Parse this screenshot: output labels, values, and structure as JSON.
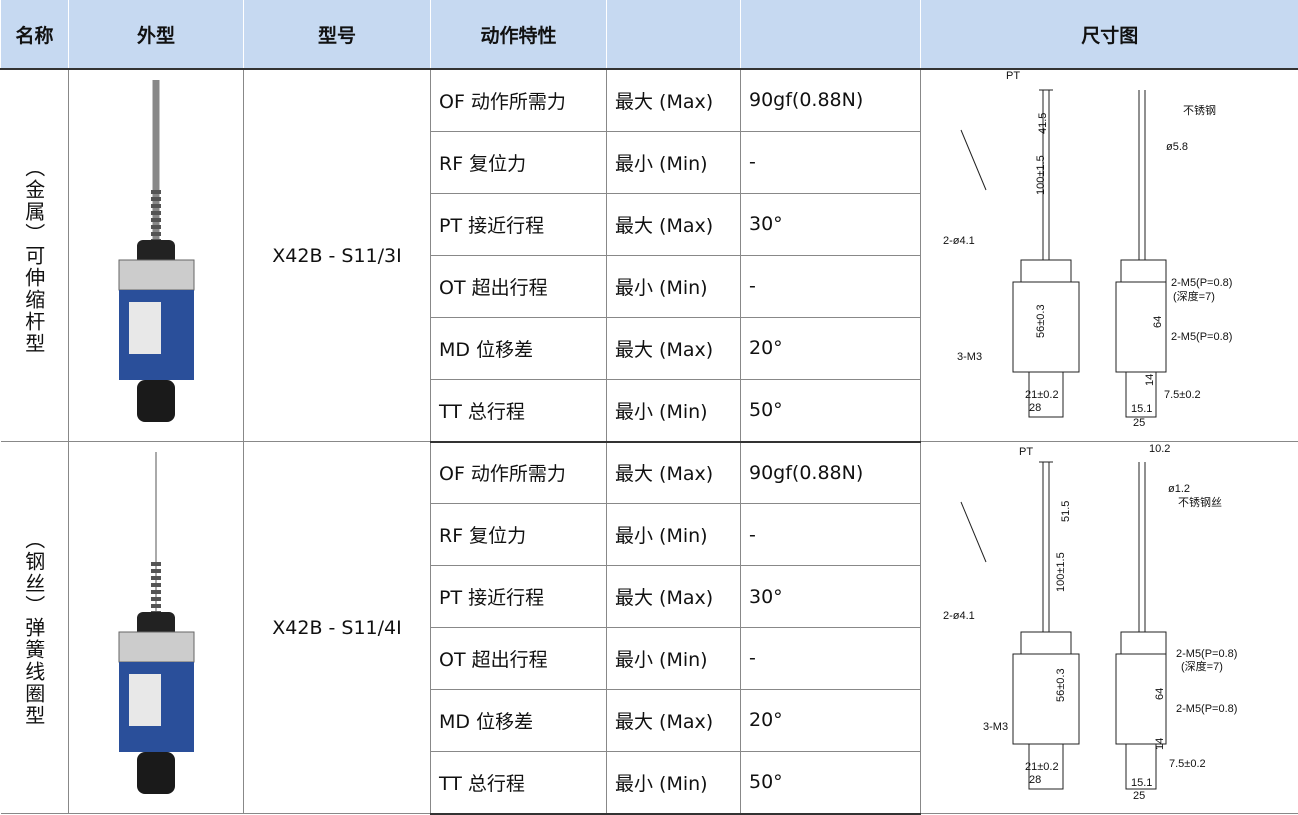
{
  "table": {
    "headers": [
      "名称",
      "外型",
      "型号",
      "动作特性",
      "尺寸图"
    ],
    "groups": [
      {
        "name": "（金属）可伸缩杆型",
        "model": "X42B - S11/3I",
        "rows": [
          [
            "OF 动作所需力",
            "最大 (Max)",
            "90gf(0.88N)"
          ],
          [
            "RF 复位力",
            "最小 (Min)",
            "-"
          ],
          [
            "PT 接近行程",
            "最大 (Max)",
            "30°"
          ],
          [
            "OT 超出行程",
            "最小 (Min)",
            "-"
          ],
          [
            "MD 位移差",
            "最大 (Max)",
            "20°"
          ],
          [
            "TT 总行程",
            "最小 (Min)",
            "50°"
          ]
        ],
        "drawing_labels": [
          "PT",
          "41.5",
          "100±1.5",
          "不锈钢",
          "ø5.8",
          "2-ø4.1",
          "2-M5(P=0.8)",
          "(深度=7)",
          "56±0.3",
          "64",
          "2-M5(P=0.8)",
          "3-M3",
          "14",
          "7.5±0.2",
          "21±0.2",
          "28",
          "15.1",
          "25"
        ]
      },
      {
        "name": "（钢丝）弹簧线圈型",
        "model": "X42B - S11/4I",
        "rows": [
          [
            "OF 动作所需力",
            "最大 (Max)",
            "90gf(0.88N)"
          ],
          [
            "RF 复位力",
            "最小 (Min)",
            "-"
          ],
          [
            "PT 接近行程",
            "最大 (Max)",
            "30°"
          ],
          [
            "OT 超出行程",
            "最小 (Min)",
            "-"
          ],
          [
            "MD 位移差",
            "最大 (Max)",
            "20°"
          ],
          [
            "TT 总行程",
            "最小 (Min)",
            "50°"
          ]
        ],
        "drawing_labels": [
          "PT",
          "10.2",
          "ø1.2",
          "不锈钢丝",
          "51.5",
          "100±1.5",
          "2-ø4.1",
          "2-M5(P=0.8)",
          "(深度=7)",
          "56±0.3",
          "64",
          "2-M5(P=0.8)",
          "3-M3",
          "14",
          "7.5±0.2",
          "21±0.2",
          "28",
          "15.1",
          "25"
        ]
      }
    ]
  }
}
